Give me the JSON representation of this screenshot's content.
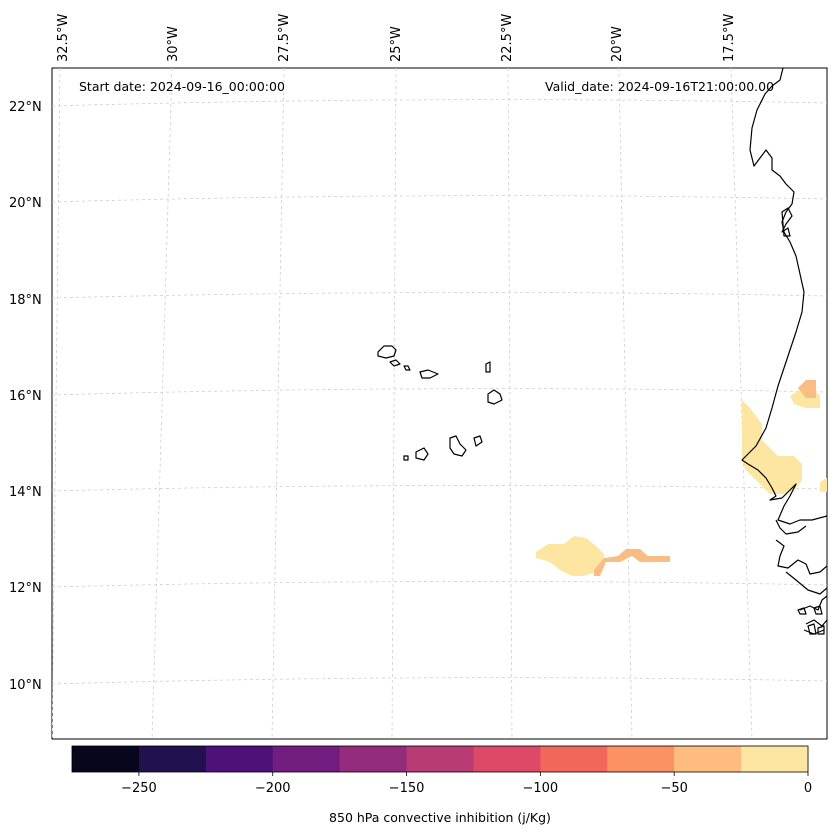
{
  "map": {
    "start_date": "Start date: 2024-09-16_00:00:00",
    "valid_date": "Valid_date: 2024-09-16T21:00:00.00",
    "lon_labels": [
      "32.5°W",
      "30°W",
      "27.5°W",
      "25°W",
      "22.5°W",
      "20°W",
      "17.5°W"
    ],
    "lat_labels": [
      "22°N",
      "20°N",
      "18°N",
      "16°N",
      "14°N",
      "12°N",
      "10°N"
    ],
    "gridlines": true,
    "coastline_color": "#000000",
    "features": [
      "Cape Verde islands",
      "West African coastline (Senegal, Gambia, Guinea-Bissau, Guinea)"
    ]
  },
  "colorbar": {
    "label": "850 hPa convective inhibition (j/Kg)",
    "tick_labels": [
      "−250",
      "−200",
      "−150",
      "−100",
      "−50",
      "0"
    ],
    "tick_values": [
      -250,
      -200,
      -150,
      -100,
      -50,
      0
    ],
    "range": [
      -275,
      0
    ],
    "bins": [
      -275,
      -250,
      -225,
      -200,
      -175,
      -150,
      -125,
      -100,
      -75,
      -50,
      -25,
      0
    ],
    "colors": [
      "#07061c",
      "#21114e",
      "#4e117a",
      "#731c7f",
      "#952b7d",
      "#b93b73",
      "#dc4a68",
      "#f1685a",
      "#fc9163",
      "#febd7f",
      "#fde6a2"
    ]
  },
  "field_colors": {
    "light": "#fde6a2",
    "medium": "#f7bd84",
    "dark": "#f0a06e"
  }
}
